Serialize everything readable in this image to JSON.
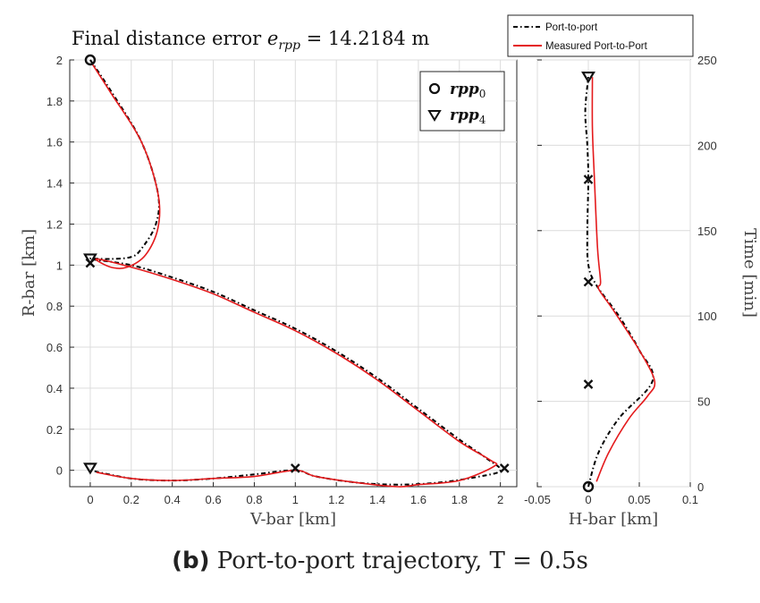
{
  "caption": {
    "label": "(b)",
    "text": "Port-to-port trajectory, T = 0.5s"
  },
  "chart_data": [
    {
      "type": "line",
      "title": "Final distance error e_rpp = 14.2184 m",
      "xlabel": "V-bar [km]",
      "ylabel": "R-bar [km]",
      "xlim": [
        -0.1,
        2.08
      ],
      "ylim": [
        -0.08,
        2.0
      ],
      "xticks": [
        "0",
        "0.2",
        "0.4",
        "0.6",
        "0.8",
        "1",
        "1.2",
        "1.4",
        "1.6",
        "1.8",
        "2"
      ],
      "xtick_values": [
        0,
        0.2,
        0.4,
        0.6,
        0.8,
        1.0,
        1.2,
        1.4,
        1.6,
        1.8,
        2.0
      ],
      "yticks": [
        "0",
        "0.2",
        "0.4",
        "0.6",
        "0.8",
        "1",
        "1.2",
        "1.4",
        "1.6",
        "1.8",
        "2"
      ],
      "ytick_values": [
        0,
        0.2,
        0.4,
        0.6,
        0.8,
        1.0,
        1.2,
        1.4,
        1.6,
        1.8,
        2.0
      ],
      "grid": true,
      "legend": {
        "position": "top-right",
        "entries": [
          {
            "marker": "circle",
            "label": "rpp0"
          },
          {
            "marker": "triangle-down",
            "label": "rpp4"
          }
        ]
      },
      "series": [
        {
          "name": "Port-to-port",
          "color": "#000000",
          "style": "dash-dot",
          "x": [
            0.0,
            0.1,
            0.25,
            0.33,
            0.32,
            0.25,
            0.2,
            0.1,
            0.0,
            0.2,
            0.4,
            0.6,
            0.8,
            1.0,
            1.2,
            1.4,
            1.6,
            1.8,
            1.93,
            2.0,
            1.9,
            1.7,
            1.5,
            1.3,
            1.1,
            1.0,
            0.8,
            0.6,
            0.4,
            0.2,
            0.0
          ],
          "y": [
            2.0,
            1.85,
            1.6,
            1.35,
            1.2,
            1.08,
            1.04,
            1.03,
            1.03,
            1.0,
            0.94,
            0.87,
            0.78,
            0.69,
            0.58,
            0.45,
            0.3,
            0.15,
            0.06,
            0.0,
            -0.03,
            -0.06,
            -0.07,
            -0.06,
            -0.03,
            0.0,
            -0.02,
            -0.04,
            -0.05,
            -0.04,
            0.0
          ]
        },
        {
          "name": "Measured Port-to-Port",
          "color": "#e41a1c",
          "style": "solid",
          "x": [
            0.01,
            0.1,
            0.25,
            0.33,
            0.33,
            0.27,
            0.18,
            0.1,
            0.03,
            0.2,
            0.4,
            0.6,
            0.8,
            1.0,
            1.2,
            1.4,
            1.6,
            1.8,
            1.95,
            1.97,
            1.8,
            1.6,
            1.5,
            1.3,
            1.1,
            1.0,
            0.8,
            0.6,
            0.4,
            0.2,
            0.03
          ],
          "y": [
            1.98,
            1.84,
            1.6,
            1.35,
            1.18,
            1.05,
            0.99,
            0.99,
            1.03,
            0.99,
            0.93,
            0.86,
            0.77,
            0.68,
            0.57,
            0.44,
            0.29,
            0.14,
            0.05,
            0.02,
            -0.05,
            -0.07,
            -0.08,
            -0.06,
            -0.03,
            0.0,
            -0.03,
            -0.04,
            -0.05,
            -0.04,
            -0.01
          ]
        }
      ],
      "markers": [
        {
          "type": "circle",
          "x": 0.0,
          "y": 2.0
        },
        {
          "type": "triangle-down",
          "x": 0.0,
          "y": 1.03
        },
        {
          "type": "x",
          "x": 0.0,
          "y": 1.01
        },
        {
          "type": "x",
          "x": 2.02,
          "y": 0.01
        },
        {
          "type": "x",
          "x": 1.0,
          "y": 0.01
        },
        {
          "type": "triangle-down",
          "x": 0.0,
          "y": 0.01
        }
      ]
    },
    {
      "type": "line",
      "xlabel": "H-bar [km]",
      "ylabel": "Time [min]",
      "xlim": [
        -0.05,
        0.1
      ],
      "ylim": [
        0,
        250
      ],
      "xticks": [
        "-0.05",
        "0",
        "0.05",
        "0.1"
      ],
      "xtick_values": [
        -0.05,
        0,
        0.05,
        0.1
      ],
      "yticks": [
        "0",
        "50",
        "100",
        "150",
        "200",
        "250"
      ],
      "ytick_values": [
        0,
        50,
        100,
        150,
        200,
        250
      ],
      "grid": true,
      "series": [
        {
          "name": "Port-to-port",
          "color": "#000000",
          "style": "dash-dot",
          "x": [
            0.0,
            0.01,
            0.03,
            0.063,
            0.05,
            0.03,
            0.008,
            0.0,
            -0.001,
            0.0,
            -0.001,
            -0.003,
            0.0
          ],
          "y": [
            0,
            20,
            40,
            62,
            80,
            100,
            118,
            130,
            150,
            180,
            200,
            220,
            240
          ]
        },
        {
          "name": "Measured Port-to-Port",
          "color": "#e41a1c",
          "style": "solid",
          "x": [
            0.008,
            0.02,
            0.04,
            0.058,
            0.065,
            0.05,
            0.025,
            0.01,
            0.012,
            0.009,
            0.006,
            0.004,
            0.004
          ],
          "y": [
            3,
            20,
            40,
            53,
            62,
            80,
            103,
            116,
            120,
            140,
            180,
            210,
            240
          ]
        }
      ],
      "markers": [
        {
          "type": "circle",
          "x": 0.0,
          "y": 0
        },
        {
          "type": "x",
          "x": 0.0,
          "y": 60
        },
        {
          "type": "x",
          "x": 0.0,
          "y": 120
        },
        {
          "type": "x",
          "x": 0.0,
          "y": 180
        },
        {
          "type": "triangle-down",
          "x": 0.0,
          "y": 240
        }
      ],
      "legend": {
        "position": "top",
        "entries": [
          {
            "label": "Port-to-port",
            "color": "#000000",
            "style": "dash-dot"
          },
          {
            "label": "Measured Port-to-Port",
            "color": "#e41a1c",
            "style": "solid"
          }
        ]
      }
    }
  ]
}
